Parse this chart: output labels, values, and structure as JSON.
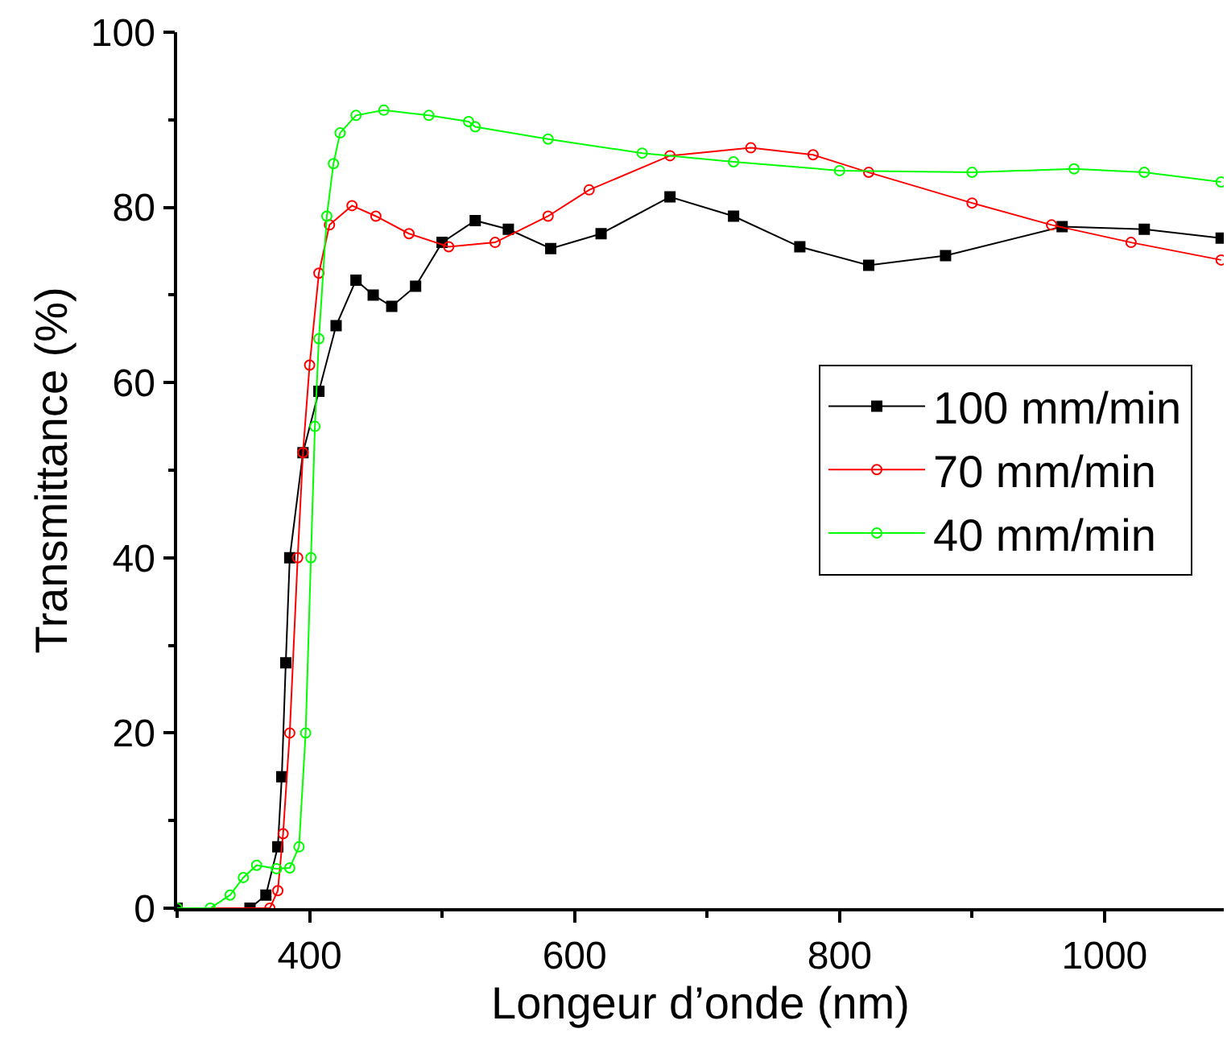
{
  "chart_data": {
    "type": "line",
    "xlabel": "Longeur d’onde (nm)",
    "ylabel": "Transmittance (%)",
    "xlim": [
      300,
      1090
    ],
    "xticks": [
      400,
      600,
      800,
      1000
    ],
    "ylim": [
      0,
      100
    ],
    "yticks": [
      0,
      20,
      40,
      60,
      80,
      100
    ],
    "grid": false,
    "legend": "right",
    "line_style": "solid",
    "series": [
      {
        "name": "100 mm/min",
        "color": "#000000",
        "marker": "square",
        "x": [
          300,
          355,
          367,
          376,
          379,
          382,
          385,
          395,
          407,
          420,
          435,
          448,
          462,
          480,
          500,
          525,
          550,
          582,
          620,
          672,
          720,
          770,
          822,
          880,
          968,
          1030,
          1088
        ],
        "values": [
          0,
          0,
          1.5,
          7,
          15,
          28,
          40,
          52,
          59,
          66.5,
          71.7,
          70,
          68.7,
          71,
          76,
          78.5,
          77.5,
          75.3,
          77,
          81.2,
          79,
          75.5,
          73.4,
          74.5,
          77.8,
          77.5,
          76.5
        ]
      },
      {
        "name": "70 mm/min",
        "color": "#ff0000",
        "marker": "circle",
        "x": [
          300,
          370,
          376,
          380,
          385,
          391,
          395,
          400,
          407,
          415,
          432,
          450,
          475,
          505,
          540,
          580,
          611,
          672,
          733,
          780,
          822,
          900,
          960,
          1020,
          1088
        ],
        "values": [
          0,
          0,
          2,
          8.5,
          20,
          40,
          52,
          62,
          72.5,
          78,
          80.2,
          79,
          77,
          75.5,
          76,
          79,
          82,
          85.9,
          86.8,
          86,
          84,
          80.5,
          78,
          76,
          74
        ]
      },
      {
        "name": "40 mm/min",
        "color": "#00ff00",
        "marker": "circle",
        "x": [
          300,
          325,
          340,
          350,
          360,
          375,
          385,
          392,
          397,
          401,
          404,
          407,
          413,
          418,
          423,
          435,
          456,
          490,
          520,
          525,
          580,
          651,
          720,
          800,
          900,
          977,
          1030,
          1088
        ],
        "values": [
          0,
          0,
          1.5,
          3.5,
          4.9,
          4.5,
          4.6,
          7,
          20,
          40,
          55,
          65,
          79,
          85,
          88.5,
          90.5,
          91.1,
          90.5,
          89.8,
          89.2,
          87.8,
          86.2,
          85.2,
          84.2,
          84,
          84.4,
          84,
          82.9
        ]
      }
    ]
  }
}
